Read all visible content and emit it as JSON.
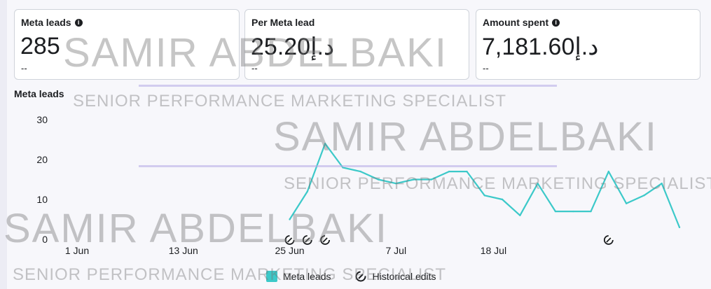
{
  "cards": [
    {
      "label": "Meta leads",
      "has_info": true,
      "value": "285",
      "delta": "--"
    },
    {
      "label": "Per Meta lead",
      "has_info": false,
      "value": "25.20د.إ",
      "delta": "--"
    },
    {
      "label": "Amount spent",
      "has_info": true,
      "value": "7,181.60د.إ",
      "delta": "--"
    }
  ],
  "chart_title": "Meta leads",
  "legend": {
    "series": "Meta leads",
    "edits": "Historical edits"
  },
  "watermark": {
    "name": "SAMIR ABDELBAKI",
    "role": "SENIOR PERFORMANCE MARKETING SPECIALIST"
  },
  "colors": {
    "line": "#3cc9c9",
    "axis": "#1c1e21"
  },
  "chart_data": {
    "type": "line",
    "x_start": "2024-06-01",
    "x_ticks": [
      "1 Jun",
      "13 Jun",
      "25 Jun",
      "7 Jul",
      "18 Jul"
    ],
    "x_tick_days": [
      1,
      13,
      25,
      37,
      48
    ],
    "y_ticks": [
      0,
      10,
      20,
      30
    ],
    "ylim": [
      0,
      30
    ],
    "series": [
      {
        "name": "Meta leads",
        "points": [
          [
            25,
            5
          ],
          [
            27,
            12
          ],
          [
            29,
            24
          ],
          [
            31,
            18
          ],
          [
            33,
            17
          ],
          [
            35,
            15
          ],
          [
            37,
            14
          ],
          [
            39,
            15
          ],
          [
            41,
            15
          ],
          [
            43,
            17
          ],
          [
            45,
            17
          ],
          [
            47,
            11
          ],
          [
            49,
            10
          ],
          [
            51,
            6
          ],
          [
            53,
            14
          ],
          [
            55,
            7
          ],
          [
            57,
            7
          ],
          [
            59,
            7
          ],
          [
            61,
            17
          ],
          [
            63,
            9
          ],
          [
            65,
            11
          ],
          [
            67,
            14
          ],
          [
            69,
            3
          ]
        ]
      }
    ],
    "historical_edits_days": [
      25,
      27,
      29,
      61
    ]
  }
}
